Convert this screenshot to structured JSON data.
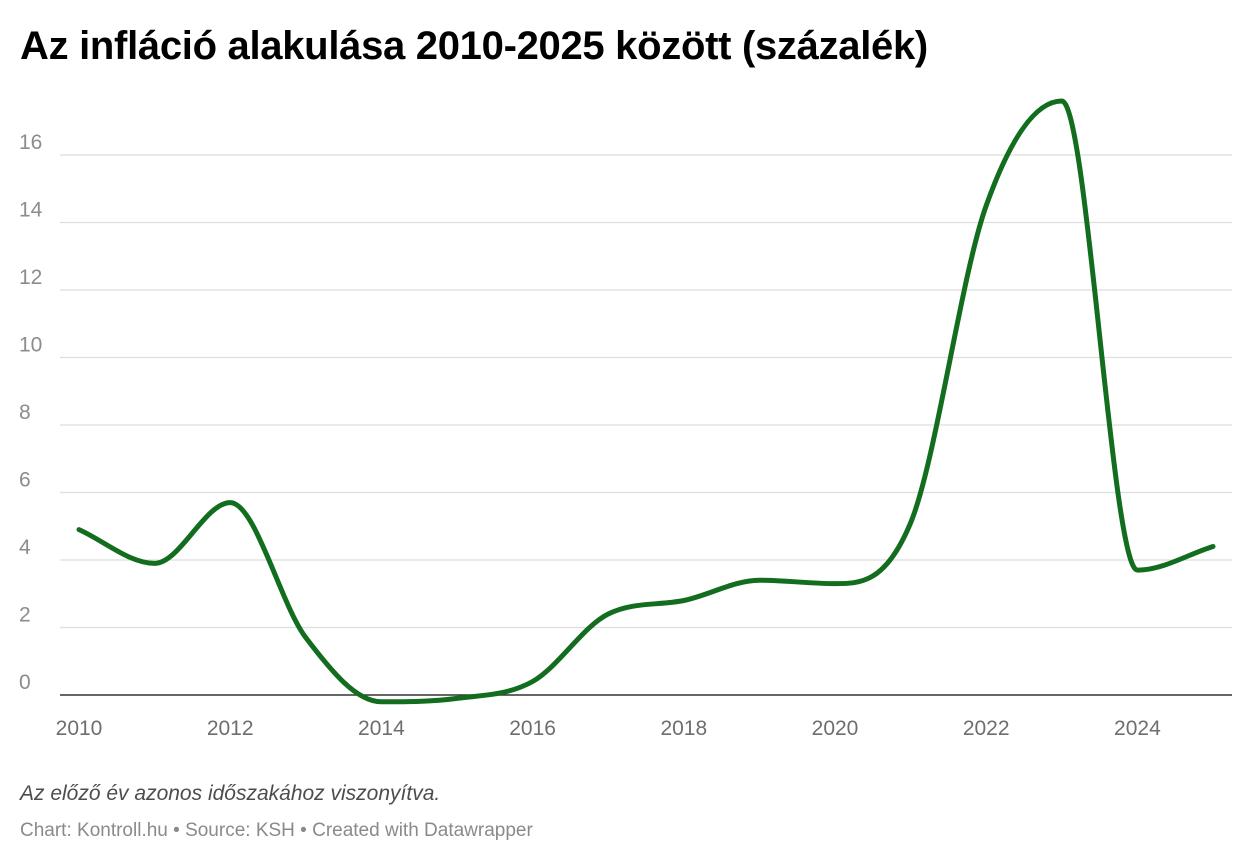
{
  "title": "Az infláció alakulása 2010-2025 között (százalék)",
  "notes": "Az előző év azonos időszakához viszonyítva.",
  "footer": "Chart: Kontroll.hu • Source: KSH • Created with Datawrapper",
  "colors": {
    "line": "#126d1f",
    "grid": "#dedede",
    "baseline": "#333333"
  },
  "chart_data": {
    "type": "line",
    "title": "Az infláció alakulása 2010-2025 között (százalék)",
    "xlabel": "",
    "ylabel": "",
    "xlim": [
      2010,
      2025
    ],
    "ylim": [
      0,
      16
    ],
    "x_ticks": [
      "2010",
      "2012",
      "2014",
      "2016",
      "2018",
      "2020",
      "2022",
      "2024"
    ],
    "y_ticks": [
      "0",
      "2",
      "4",
      "6",
      "8",
      "10",
      "12",
      "14",
      "16"
    ],
    "grid": true,
    "legend": "none",
    "series": [
      {
        "x": [
          2010,
          2011,
          2012,
          2013,
          2014,
          2015,
          2016,
          2017,
          2018,
          2019,
          2020,
          2021,
          2022,
          2023,
          2024,
          2025
        ],
        "values": [
          4.9,
          3.9,
          5.7,
          1.7,
          -0.2,
          -0.1,
          0.4,
          2.4,
          2.8,
          3.4,
          3.3,
          5.1,
          14.5,
          17.6,
          3.7,
          4.4
        ]
      }
    ]
  }
}
